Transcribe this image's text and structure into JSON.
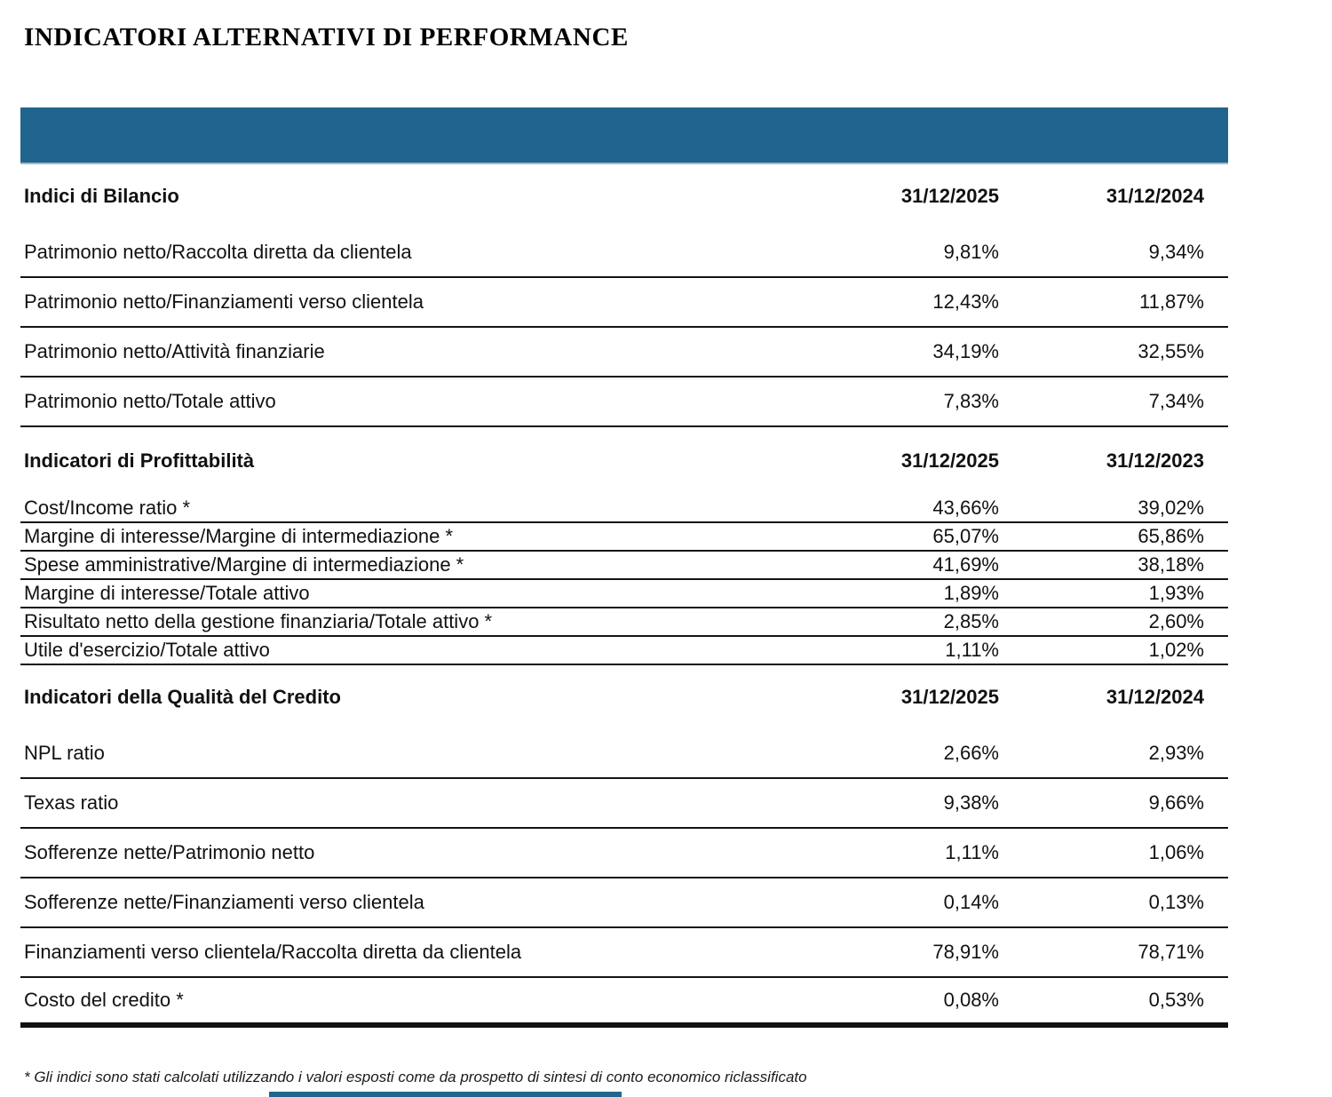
{
  "page": {
    "title": "INDICATORI ALTERNATIVI DI PERFORMANCE"
  },
  "colors": {
    "header_bar": "#21658F",
    "accent_strip": "#21658F"
  },
  "table": {
    "sections": [
      {
        "header": "Indici di Bilancio",
        "col1": "31/12/2025",
        "col2": "31/12/2024",
        "dense": false,
        "rows": [
          {
            "label": "Patrimonio netto/Raccolta diretta da clientela",
            "v1": "9,81%",
            "v2": "9,34%"
          },
          {
            "label": "Patrimonio netto/Finanziamenti verso clientela",
            "v1": "12,43%",
            "v2": "11,87%"
          },
          {
            "label": "Patrimonio netto/Attività finanziarie",
            "v1": "34,19%",
            "v2": "32,55%"
          },
          {
            "label": "Patrimonio netto/Totale attivo",
            "v1": "7,83%",
            "v2": "7,34%"
          }
        ]
      },
      {
        "header": "Indicatori di Profittabilità",
        "col1": "31/12/2025",
        "col2": "31/12/2023",
        "dense": true,
        "rows": [
          {
            "label": "Cost/Income ratio *",
            "v1": "43,66%",
            "v2": "39,02%"
          },
          {
            "label": "Margine di interesse/Margine di intermediazione *",
            "v1": "65,07%",
            "v2": "65,86%"
          },
          {
            "label": "Spese amministrative/Margine di intermediazione *",
            "v1": "41,69%",
            "v2": "38,18%"
          },
          {
            "label": "Margine di interesse/Totale attivo",
            "v1": "1,89%",
            "v2": "1,93%"
          },
          {
            "label": "Risultato netto della gestione finanziaria/Totale attivo *",
            "v1": "2,85%",
            "v2": "2,60%"
          },
          {
            "label": "Utile d'esercizio/Totale attivo",
            "v1": "1,11%",
            "v2": "1,02%"
          }
        ]
      },
      {
        "header": "Indicatori della Qualità del Credito",
        "col1": "31/12/2025",
        "col2": "31/12/2024",
        "dense": false,
        "rows": [
          {
            "label": "NPL ratio",
            "v1": "2,66%",
            "v2": "2,93%"
          },
          {
            "label": "Texas ratio",
            "v1": "9,38%",
            "v2": "9,66%"
          },
          {
            "label": "Sofferenze nette/Patrimonio netto",
            "v1": "1,11%",
            "v2": "1,06%"
          },
          {
            "label": "Sofferenze nette/Finanziamenti verso clientela",
            "v1": "0,14%",
            "v2": "0,13%"
          },
          {
            "label": "Finanziamenti verso clientela/Raccolta diretta da clientela",
            "v1": "78,91%",
            "v2": "78,71%"
          },
          {
            "label": "Costo del credito *",
            "v1": "0,08%",
            "v2": "0,53%"
          }
        ]
      }
    ]
  },
  "footnote": "* Gli indici sono stati calcolati utilizzando i valori esposti come da prospetto di sintesi di conto economico riclassificato"
}
